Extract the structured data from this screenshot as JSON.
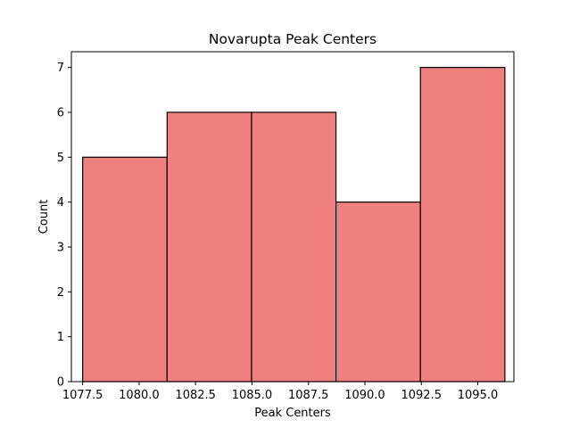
{
  "chart_data": {
    "type": "bar",
    "title": "Novarupta Peak Centers",
    "xlabel": "Peak Centers",
    "ylabel": "Count",
    "bin_edges": [
      1077.5,
      1081.24,
      1084.98,
      1088.72,
      1092.46,
      1096.2
    ],
    "values": [
      5,
      6,
      6,
      4,
      7
    ],
    "xlim": [
      1077.0,
      1096.6
    ],
    "ylim": [
      0,
      7.35
    ],
    "xticks": [
      1077.5,
      1080.0,
      1082.5,
      1085.0,
      1087.5,
      1090.0,
      1092.5,
      1095.0
    ],
    "xtick_labels": [
      "1077.5",
      "1080.0",
      "1082.5",
      "1085.0",
      "1087.5",
      "1090.0",
      "1092.5",
      "1095.0"
    ],
    "yticks": [
      0,
      1,
      2,
      3,
      4,
      5,
      6,
      7
    ],
    "ytick_labels": [
      "0",
      "1",
      "2",
      "3",
      "4",
      "5",
      "6",
      "7"
    ],
    "bar_color": "#f08080",
    "edge_color": "#000000",
    "grid": false
  }
}
